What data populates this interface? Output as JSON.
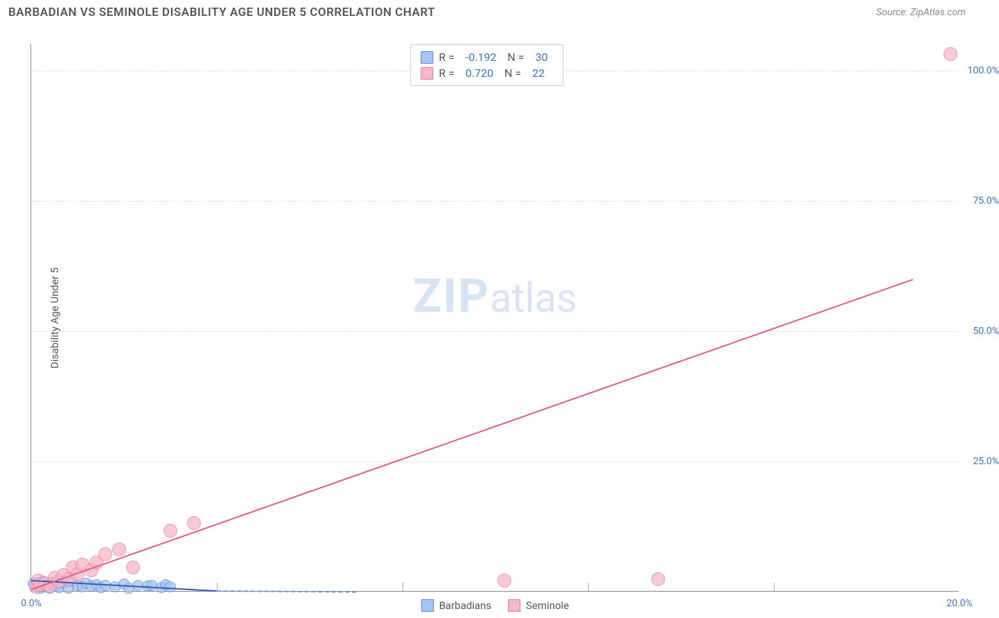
{
  "header": {
    "title": "BARBADIAN VS SEMINOLE DISABILITY AGE UNDER 5 CORRELATION CHART",
    "source": "Source: ZipAtlas.com"
  },
  "chart": {
    "type": "scatter",
    "ylabel": "Disability Age Under 5",
    "xlim": [
      0,
      20
    ],
    "ylim": [
      0,
      105
    ],
    "xtick_labels": [
      "0.0%",
      "20.0%"
    ],
    "xtick_positions": [
      0,
      20
    ],
    "xtick_minor_positions": [
      4,
      8,
      12,
      16
    ],
    "ytick_labels": [
      "25.0%",
      "50.0%",
      "75.0%",
      "100.0%"
    ],
    "ytick_positions": [
      25,
      50,
      75,
      100
    ],
    "background_color": "#ffffff",
    "grid_color": "#dddddd",
    "axis_color": "#888888",
    "tick_label_color": "#3b6fc9",
    "watermark_zip": "ZIP",
    "watermark_atlas": "atlas",
    "watermark_color": "#d8e4f5",
    "series": [
      {
        "name": "Barbadians",
        "fill_color": "#a8c4f0",
        "stroke_color": "#5a87d6",
        "marker_radius": 8,
        "R": "-0.192",
        "N": "30",
        "trend_solid": {
          "x1": 0,
          "y1": 2.2,
          "x2": 4.0,
          "y2": 0.2,
          "color": "#2e5db8"
        },
        "trend_dashed": {
          "x1": 4.0,
          "y1": 0.2,
          "x2": 7.0,
          "y2": 0.0,
          "color": "#6a93da"
        },
        "points": [
          {
            "x": 0.05,
            "y": 1.5
          },
          {
            "x": 0.1,
            "y": 1.0
          },
          {
            "x": 0.2,
            "y": 0.6
          },
          {
            "x": 0.25,
            "y": 1.8
          },
          {
            "x": 0.3,
            "y": 0.8
          },
          {
            "x": 0.35,
            "y": 1.2
          },
          {
            "x": 0.4,
            "y": 0.5
          },
          {
            "x": 0.45,
            "y": 1.6
          },
          {
            "x": 0.5,
            "y": 0.9
          },
          {
            "x": 0.55,
            "y": 1.3
          },
          {
            "x": 0.6,
            "y": 0.7
          },
          {
            "x": 0.7,
            "y": 1.4
          },
          {
            "x": 0.8,
            "y": 0.6
          },
          {
            "x": 0.9,
            "y": 1.9
          },
          {
            "x": 1.0,
            "y": 1.1
          },
          {
            "x": 1.1,
            "y": 0.8
          },
          {
            "x": 1.2,
            "y": 1.5
          },
          {
            "x": 1.3,
            "y": 0.9
          },
          {
            "x": 1.4,
            "y": 1.2
          },
          {
            "x": 1.5,
            "y": 0.7
          },
          {
            "x": 1.6,
            "y": 1.0
          },
          {
            "x": 1.8,
            "y": 0.8
          },
          {
            "x": 2.0,
            "y": 1.3
          },
          {
            "x": 2.1,
            "y": 0.6
          },
          {
            "x": 2.3,
            "y": 1.1
          },
          {
            "x": 2.5,
            "y": 0.9
          },
          {
            "x": 2.6,
            "y": 1.0
          },
          {
            "x": 2.8,
            "y": 0.7
          },
          {
            "x": 2.9,
            "y": 1.2
          },
          {
            "x": 3.0,
            "y": 0.8
          }
        ]
      },
      {
        "name": "Seminole",
        "fill_color": "#f5b8c8",
        "stroke_color": "#e87ba0",
        "marker_radius": 10,
        "R": "0.720",
        "N": "22",
        "trend_solid": {
          "x1": 0,
          "y1": 0.5,
          "x2": 19.0,
          "y2": 60.0,
          "color": "#e55a8a"
        },
        "points": [
          {
            "x": 0.1,
            "y": 0.8
          },
          {
            "x": 0.15,
            "y": 2.0
          },
          {
            "x": 0.2,
            "y": 1.2
          },
          {
            "x": 0.3,
            "y": 1.5
          },
          {
            "x": 0.4,
            "y": 0.9
          },
          {
            "x": 0.5,
            "y": 2.5
          },
          {
            "x": 0.6,
            "y": 1.8
          },
          {
            "x": 0.7,
            "y": 3.0
          },
          {
            "x": 0.8,
            "y": 2.2
          },
          {
            "x": 0.9,
            "y": 4.5
          },
          {
            "x": 1.0,
            "y": 3.2
          },
          {
            "x": 1.1,
            "y": 5.0
          },
          {
            "x": 1.3,
            "y": 4.0
          },
          {
            "x": 1.4,
            "y": 5.5
          },
          {
            "x": 1.6,
            "y": 7.0
          },
          {
            "x": 2.2,
            "y": 4.5
          },
          {
            "x": 3.0,
            "y": 11.5
          },
          {
            "x": 3.5,
            "y": 13.0
          },
          {
            "x": 10.2,
            "y": 2.0
          },
          {
            "x": 13.5,
            "y": 2.3
          },
          {
            "x": 19.8,
            "y": 103.0
          },
          {
            "x": 1.9,
            "y": 8.0
          }
        ]
      }
    ],
    "legend_top_labels": {
      "R_label": "R =",
      "N_label": "N ="
    },
    "legend_bottom": [
      {
        "label": "Barbadians",
        "fill": "#a8c4f0",
        "stroke": "#5a87d6"
      },
      {
        "label": "Seminole",
        "fill": "#f5b8c8",
        "stroke": "#e87ba0"
      }
    ]
  }
}
